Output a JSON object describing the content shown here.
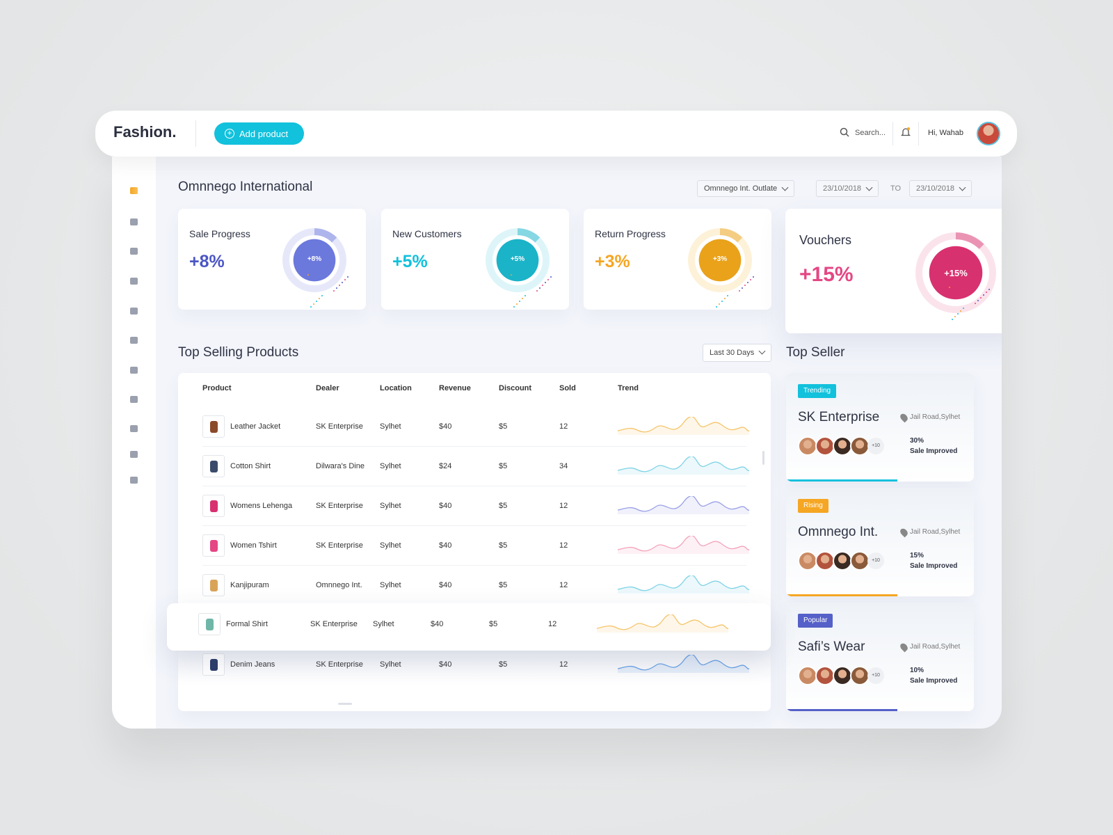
{
  "header": {
    "logo": "Fashion.",
    "add_button": "Add product",
    "search": "Search...",
    "greeting": "Hi, Wahab"
  },
  "page": {
    "title": "Omnnego International",
    "outlet": "Omnnego Int. Outlate",
    "date_from": "23/10/2018",
    "to": "TO",
    "date_to": "23/10/2018"
  },
  "stats": [
    {
      "title": "Sale Progress",
      "value": "+8%"
    },
    {
      "title": "New Customers",
      "value": "+5%"
    },
    {
      "title": "Return Progress",
      "value": "+3%"
    },
    {
      "title": "Vouchers",
      "value": "+15%"
    }
  ],
  "products": {
    "title": "Top Selling Products",
    "range": "Last 30 Days",
    "columns": [
      "Product",
      "Dealer",
      "Location",
      "Revenue",
      "Discount",
      "Sold",
      "Trend"
    ],
    "rows": [
      [
        "Leather Jacket",
        "SK Enterprise",
        "Sylhet",
        "$40",
        "$5",
        12
      ],
      [
        "Cotton Shirt",
        "Dilwara's Dine",
        "Sylhet",
        "$24",
        "$5",
        34
      ],
      [
        "Womens Lehenga",
        "SK Enterprise",
        "Sylhet",
        "$40",
        "$5",
        12
      ],
      [
        "Women Tshirt",
        "SK Enterprise",
        "Sylhet",
        "$40",
        "$5",
        12
      ],
      [
        "Kanjipuram",
        "Omnnego Int.",
        "Sylhet",
        "$40",
        "$5",
        12
      ],
      [
        "Formal  Shirt",
        "SK Enterprise",
        "Sylhet",
        "$40",
        "$5",
        12
      ],
      [
        "Denim Jeans",
        "SK Enterprise",
        "Sylhet",
        "$40",
        "$5",
        12
      ]
    ]
  },
  "sellers": {
    "title": "Top Seller",
    "items": [
      {
        "badge": "Trending",
        "name": "SK Enterprise",
        "location": "Jail Road,Sylhet",
        "more": "+10",
        "percent": "30%",
        "note": "Sale Improved"
      },
      {
        "badge": "Rising",
        "name": "Omnnego Int.",
        "location": "Jail Road,Sylhet",
        "more": "+10",
        "percent": "15%",
        "note": "Sale Improved"
      },
      {
        "badge": "Popular",
        "name": "Safi’s Wear",
        "location": "Jail Road,Sylhet",
        "more": "+10",
        "percent": "10%",
        "note": "Sale Improved"
      }
    ]
  }
}
